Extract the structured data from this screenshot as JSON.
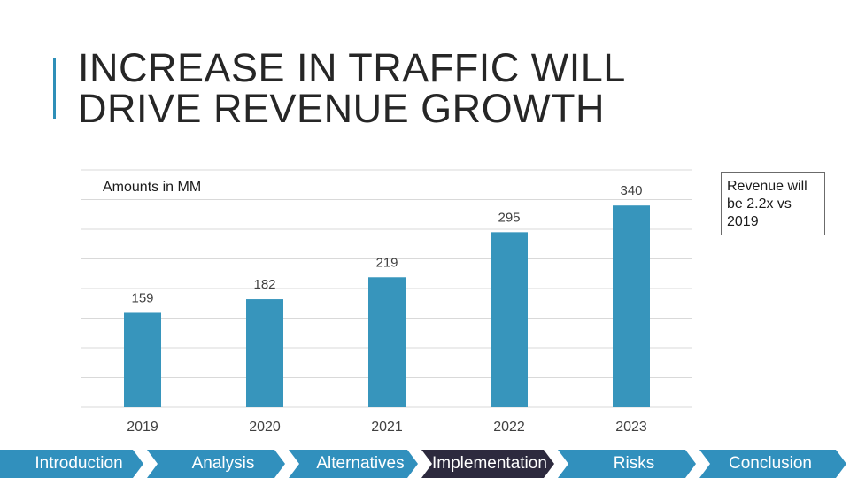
{
  "slide": {
    "title_line1": "INCREASE IN TRAFFIC WILL",
    "title_line2": "DRIVE REVENUE GROWTH",
    "callout": "Revenue will be 2.2x vs 2019"
  },
  "colors": {
    "accent": "#2e8fb8",
    "bar": "#3795bc",
    "nav": "#3190bd",
    "nav_active": "#2d2a3e",
    "grid": "#d9d9d9"
  },
  "chart_data": {
    "type": "bar",
    "title": "Amounts in MM",
    "categories": [
      "2019",
      "2020",
      "2021",
      "2022",
      "2023"
    ],
    "values": [
      159,
      182,
      219,
      295,
      340
    ],
    "data_labels": [
      "159",
      "182",
      "219",
      "295",
      "340"
    ],
    "xlabel": "",
    "ylabel": "",
    "ylim": [
      0,
      400
    ],
    "grid": true,
    "legend": "none"
  },
  "nav": {
    "items": [
      {
        "label": "Introduction",
        "active": false
      },
      {
        "label": "Analysis",
        "active": false
      },
      {
        "label": "Alternatives",
        "active": false
      },
      {
        "label": "Implementation",
        "active": true
      },
      {
        "label": "Risks",
        "active": false
      },
      {
        "label": "Conclusion",
        "active": false
      }
    ]
  }
}
